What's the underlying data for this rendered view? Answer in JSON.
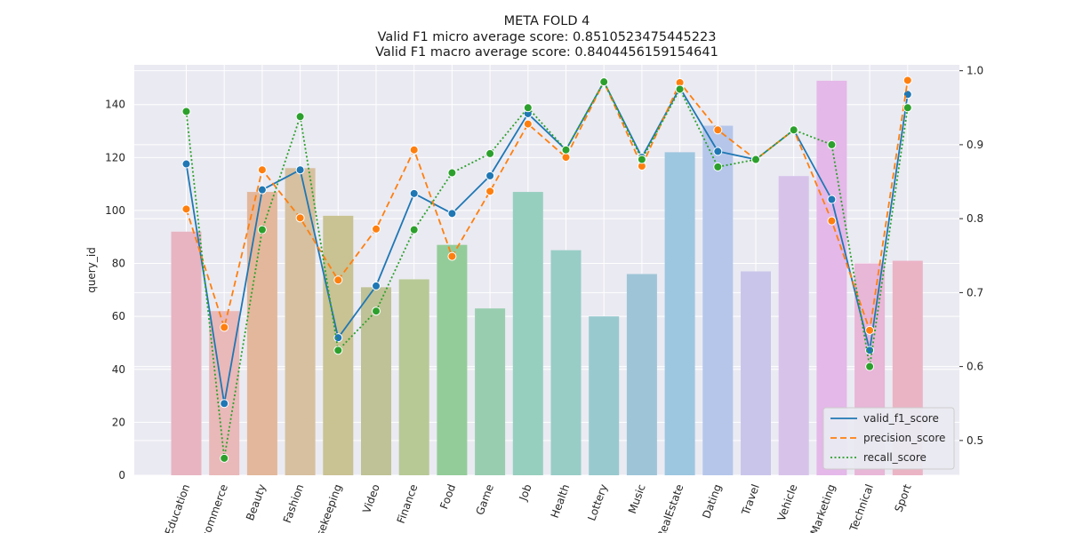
{
  "title": {
    "line1": "META FOLD 4",
    "line2": "Valid F1 micro average score: 0.8510523475445223",
    "line3": "Valid F1 macro average score: 0.8404456159154641"
  },
  "chart_data": {
    "type": "bar",
    "categories": [
      "Education",
      "Ecommerce",
      "Beauty",
      "Fashion",
      "Housekeeping",
      "Video",
      "Finance",
      "Food",
      "Game",
      "Job",
      "Health",
      "Lottery",
      "Music",
      "RealEstate",
      "Dating",
      "Travel",
      "Vehicle",
      "Marketing",
      "Technical",
      "Sport"
    ],
    "bar_series": {
      "axis": "left",
      "values": [
        92,
        62,
        107,
        116,
        98,
        71,
        74,
        87,
        63,
        107,
        85,
        60,
        76,
        122,
        132,
        77,
        113,
        149,
        80,
        81
      ],
      "colors": [
        "#e8b4c2",
        "#e9b8b8",
        "#e3b79b",
        "#d6c09f",
        "#c9c293",
        "#bfc296",
        "#b7c995",
        "#93cc99",
        "#99cdb0",
        "#97cfbf",
        "#98cdc6",
        "#98c9ce",
        "#9ec4d7",
        "#9dc6e0",
        "#b5c6ea",
        "#c9c5ea",
        "#d7c3ea",
        "#e4b8e8",
        "#e8b6d7",
        "#ebb4c5"
      ]
    },
    "line_series": [
      {
        "name": "valid_f1_score",
        "axis": "right",
        "color": "#1f77b4",
        "style": "solid",
        "values": [
          0.874,
          0.55,
          0.839,
          0.866,
          0.639,
          0.709,
          0.834,
          0.807,
          0.858,
          0.942,
          0.893,
          0.985,
          0.883,
          0.977,
          0.891,
          0.88,
          0.92,
          0.826,
          0.622,
          0.968
        ]
      },
      {
        "name": "precision_score",
        "axis": "right",
        "color": "#ff7f0e",
        "style": "dashed",
        "values": [
          0.813,
          0.653,
          0.866,
          0.801,
          0.717,
          0.786,
          0.893,
          0.749,
          0.837,
          0.928,
          0.883,
          0.985,
          0.871,
          0.984,
          0.92,
          0.88,
          0.92,
          0.797,
          0.649,
          0.987
        ]
      },
      {
        "name": "recall_score",
        "axis": "right",
        "color": "#2ca02c",
        "style": "dotted",
        "values": [
          0.945,
          0.476,
          0.785,
          0.938,
          0.622,
          0.675,
          0.785,
          0.862,
          0.888,
          0.95,
          0.893,
          0.985,
          0.88,
          0.975,
          0.87,
          0.88,
          0.92,
          0.9,
          0.6,
          0.95
        ]
      }
    ],
    "ylabel": "query_id",
    "xlabel": "",
    "ylim_left": [
      0,
      155
    ],
    "yticks_left": [
      0,
      20,
      40,
      60,
      80,
      100,
      120,
      140
    ],
    "ylim_right": [
      0.453,
      1.008
    ],
    "yticks_right": [
      "0.5",
      "0.6",
      "0.7",
      "0.8",
      "0.9",
      "1.0"
    ],
    "xtick_rotation": -70,
    "grid": true,
    "background": "#eaeaf2",
    "legend_position": "bottom-right",
    "legend": [
      "valid_f1_score",
      "precision_score",
      "recall_score"
    ]
  }
}
